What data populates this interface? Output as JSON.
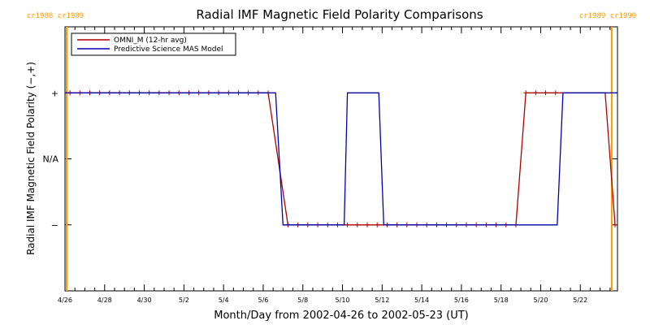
{
  "chart_data": {
    "type": "line",
    "title": "Radial IMF Magnetic Field Polarity Comparisons",
    "xlabel": "Month/Day from 2002-04-26 to 2002-05-23 (UT)",
    "ylabel": "Radial IMF Magnetic Field Polarity (−,+)",
    "xlim": [
      "2002-04-26T00:00",
      "2002-05-23T21:00"
    ],
    "ylim": [
      -2,
      2
    ],
    "x_ticks": [
      "4/26",
      "4/28",
      "4/30",
      "5/2",
      "5/4",
      "5/6",
      "5/8",
      "5/10",
      "5/12",
      "5/14",
      "5/16",
      "5/18",
      "5/20",
      "5/22"
    ],
    "x_tick_dates": [
      "2002-04-26",
      "2002-04-28",
      "2002-04-30",
      "2002-05-02",
      "2002-05-04",
      "2002-05-06",
      "2002-05-08",
      "2002-05-10",
      "2002-05-12",
      "2002-05-14",
      "2002-05-16",
      "2002-05-18",
      "2002-05-20",
      "2002-05-22"
    ],
    "y_ticks": [
      {
        "value": 1,
        "label": "+"
      },
      {
        "value": 0,
        "label": "N/A"
      },
      {
        "value": -1,
        "label": "−"
      }
    ],
    "series": [
      {
        "name": "OMNI_M (12-hr avg)",
        "color": "#b00000",
        "marker": "plus",
        "x": [
          "2002-04-26T06:00",
          "2002-04-26T18:00",
          "2002-04-27T06:00",
          "2002-04-27T18:00",
          "2002-04-28T06:00",
          "2002-04-28T18:00",
          "2002-04-29T06:00",
          "2002-04-29T18:00",
          "2002-04-30T06:00",
          "2002-04-30T18:00",
          "2002-05-01T06:00",
          "2002-05-01T18:00",
          "2002-05-02T06:00",
          "2002-05-02T18:00",
          "2002-05-03T06:00",
          "2002-05-03T18:00",
          "2002-05-04T06:00",
          "2002-05-04T18:00",
          "2002-05-05T06:00",
          "2002-05-05T18:00",
          "2002-05-06T06:00",
          "2002-05-06T18:00",
          "2002-05-07T06:00",
          "2002-05-07T18:00",
          "2002-05-08T06:00",
          "2002-05-08T18:00",
          "2002-05-09T06:00",
          "2002-05-09T18:00",
          "2002-05-10T06:00",
          "2002-05-10T18:00",
          "2002-05-11T06:00",
          "2002-05-11T18:00",
          "2002-05-12T06:00",
          "2002-05-12T18:00",
          "2002-05-13T06:00",
          "2002-05-13T18:00",
          "2002-05-14T06:00",
          "2002-05-14T18:00",
          "2002-05-15T06:00",
          "2002-05-15T18:00",
          "2002-05-16T06:00",
          "2002-05-16T18:00",
          "2002-05-17T06:00",
          "2002-05-17T18:00",
          "2002-05-18T06:00",
          "2002-05-18T18:00",
          "2002-05-19T06:00",
          "2002-05-19T18:00",
          "2002-05-20T06:00",
          "2002-05-20T18:00",
          "2002-05-21T06:00",
          "2002-05-21T18:00",
          "2002-05-22T06:00",
          "2002-05-22T18:00",
          "2002-05-23T06:00",
          "2002-05-23T18:00"
        ],
        "y": [
          1,
          1,
          1,
          1,
          1,
          1,
          1,
          1,
          1,
          1,
          1,
          1,
          1,
          1,
          1,
          1,
          1,
          1,
          1,
          1,
          1,
          null,
          -1,
          -1,
          -1,
          -1,
          -1,
          -1,
          -1,
          -1,
          -1,
          -1,
          -1,
          -1,
          -1,
          -1,
          -1,
          -1,
          -1,
          -1,
          -1,
          -1,
          -1,
          -1,
          -1,
          -1,
          1,
          1,
          1,
          1,
          1,
          1,
          1,
          1,
          1,
          -1
        ],
        "marked": [
          true,
          true,
          true,
          true,
          true,
          true,
          true,
          true,
          true,
          true,
          true,
          true,
          true,
          true,
          true,
          true,
          true,
          true,
          true,
          true,
          true,
          false,
          true,
          true,
          true,
          true,
          true,
          true,
          true,
          true,
          true,
          true,
          true,
          true,
          true,
          true,
          true,
          true,
          true,
          true,
          true,
          true,
          true,
          true,
          true,
          true,
          true,
          true,
          true,
          true,
          false,
          false,
          false,
          false,
          false,
          true
        ]
      },
      {
        "name": "Predictive Science MAS Model",
        "color": "#0000b0",
        "marker": "none",
        "x": [
          "2002-04-26T00:00",
          "2002-05-06T15:00",
          "2002-05-07T00:00",
          "2002-05-10T02:00",
          "2002-05-10T06:00",
          "2002-05-11T20:00",
          "2002-05-12T02:00",
          "2002-05-20T20:00",
          "2002-05-21T03:00",
          "2002-05-23T21:00"
        ],
        "y": [
          1,
          1,
          -1,
          -1,
          1,
          1,
          -1,
          -1,
          1,
          1
        ]
      }
    ],
    "vertical_lines": [
      {
        "x": "2002-04-26T02:00",
        "label": "cr1988 cr1989",
        "color": "#ff9900"
      },
      {
        "x": "2002-05-23T14:00",
        "label": "cr1989 cr1990",
        "color": "#ff9900"
      }
    ],
    "legend": "top-left",
    "grid": false
  }
}
